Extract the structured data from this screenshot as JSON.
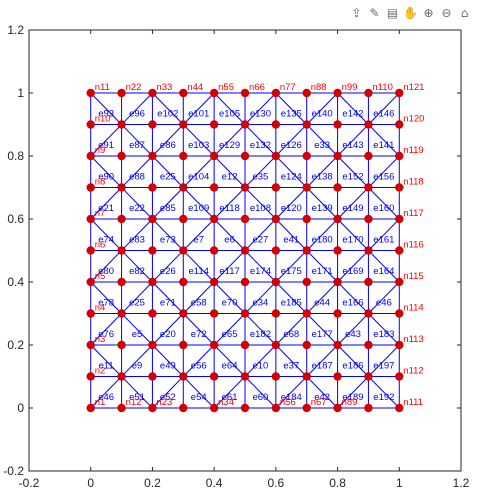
{
  "toolbar": {
    "icons": [
      {
        "name": "export-icon",
        "glyph": "⇪"
      },
      {
        "name": "brush-icon",
        "glyph": "✎"
      },
      {
        "name": "datatip-icon",
        "glyph": "▤"
      },
      {
        "name": "pan-icon",
        "glyph": "✋"
      },
      {
        "name": "zoom-in-icon",
        "glyph": "⊕"
      },
      {
        "name": "zoom-out-icon",
        "glyph": "⊖"
      },
      {
        "name": "home-icon",
        "glyph": "⌂"
      }
    ]
  },
  "chart_data": {
    "type": "scatter",
    "title": "",
    "xlabel": "",
    "ylabel": "",
    "xlim": [
      -0.2,
      1.2
    ],
    "ylim": [
      -0.2,
      1.2
    ],
    "xticks": [
      "-0.2",
      "0",
      "0.2",
      "0.4",
      "0.6",
      "0.8",
      "1",
      "1.2"
    ],
    "yticks": [
      "-0.2",
      "0",
      "0.2",
      "0.4",
      "0.6",
      "0.8",
      "1",
      "1.2"
    ],
    "grid": false,
    "box": true,
    "mesh": {
      "x": [
        0,
        0.1,
        0.2,
        0.3,
        0.4,
        0.5,
        0.6,
        0.7,
        0.8,
        0.9,
        1.0
      ],
      "y": [
        0,
        0.1,
        0.2,
        0.3,
        0.4,
        0.5,
        0.6,
        0.7,
        0.8,
        0.9,
        1.0
      ],
      "diagonals": "each square split by one diagonal",
      "node_color": "#d40000",
      "edge_color": "#0000ff"
    },
    "node_labels": [
      {
        "t": "n1",
        "x": 0,
        "y": 0
      },
      {
        "t": "n12",
        "x": 0.1,
        "y": 0
      },
      {
        "t": "n23",
        "x": 0.2,
        "y": 0
      },
      {
        "t": "n34",
        "x": 0.4,
        "y": 0
      },
      {
        "t": "n56",
        "x": 0.6,
        "y": 0
      },
      {
        "t": "n67",
        "x": 0.7,
        "y": 0
      },
      {
        "t": "n89",
        "x": 0.8,
        "y": 0
      },
      {
        "t": "n111",
        "x": 1.0,
        "y": 0
      },
      {
        "t": "n2",
        "x": 0,
        "y": 0.1
      },
      {
        "t": "n112",
        "x": 1.0,
        "y": 0.1
      },
      {
        "t": "n3",
        "x": 0,
        "y": 0.2
      },
      {
        "t": "n113",
        "x": 1.0,
        "y": 0.2
      },
      {
        "t": "n4",
        "x": 0,
        "y": 0.3
      },
      {
        "t": "n114",
        "x": 1.0,
        "y": 0.3
      },
      {
        "t": "n5",
        "x": 0,
        "y": 0.4
      },
      {
        "t": "n115",
        "x": 1.0,
        "y": 0.4
      },
      {
        "t": "n6",
        "x": 0,
        "y": 0.5
      },
      {
        "t": "n116",
        "x": 1.0,
        "y": 0.5
      },
      {
        "t": "n7",
        "x": 0,
        "y": 0.6
      },
      {
        "t": "n117",
        "x": 1.0,
        "y": 0.6
      },
      {
        "t": "n8",
        "x": 0,
        "y": 0.7
      },
      {
        "t": "n118",
        "x": 1.0,
        "y": 0.7
      },
      {
        "t": "n9",
        "x": 0,
        "y": 0.8
      },
      {
        "t": "n119",
        "x": 1.0,
        "y": 0.8
      },
      {
        "t": "n10",
        "x": 0,
        "y": 0.9
      },
      {
        "t": "n120",
        "x": 1.0,
        "y": 0.9
      },
      {
        "t": "n11",
        "x": 0,
        "y": 1.0
      },
      {
        "t": "n22",
        "x": 0.1,
        "y": 1.0
      },
      {
        "t": "n33",
        "x": 0.2,
        "y": 1.0
      },
      {
        "t": "n44",
        "x": 0.3,
        "y": 1.0
      },
      {
        "t": "n55",
        "x": 0.4,
        "y": 1.0
      },
      {
        "t": "n66",
        "x": 0.5,
        "y": 1.0
      },
      {
        "t": "n77",
        "x": 0.6,
        "y": 1.0
      },
      {
        "t": "n88",
        "x": 0.7,
        "y": 1.0
      },
      {
        "t": "n99",
        "x": 0.8,
        "y": 1.0
      },
      {
        "t": "n110",
        "x": 0.9,
        "y": 1.0
      },
      {
        "t": "n121",
        "x": 1.0,
        "y": 1.0
      }
    ],
    "edge_labels": [
      {
        "t": "e93",
        "x": 0.05,
        "y": 0.935
      },
      {
        "t": "e96",
        "x": 0.15,
        "y": 0.935
      },
      {
        "t": "e102",
        "x": 0.25,
        "y": 0.935
      },
      {
        "t": "e101",
        "x": 0.35,
        "y": 0.935
      },
      {
        "t": "e105",
        "x": 0.45,
        "y": 0.935
      },
      {
        "t": "e130",
        "x": 0.55,
        "y": 0.935
      },
      {
        "t": "e135",
        "x": 0.65,
        "y": 0.935
      },
      {
        "t": "e140",
        "x": 0.75,
        "y": 0.935
      },
      {
        "t": "e142",
        "x": 0.85,
        "y": 0.935
      },
      {
        "t": "e146",
        "x": 0.95,
        "y": 0.935
      },
      {
        "t": "e91",
        "x": 0.05,
        "y": 0.835
      },
      {
        "t": "e87",
        "x": 0.15,
        "y": 0.835
      },
      {
        "t": "e86",
        "x": 0.25,
        "y": 0.835
      },
      {
        "t": "e103",
        "x": 0.35,
        "y": 0.835
      },
      {
        "t": "e129",
        "x": 0.45,
        "y": 0.835
      },
      {
        "t": "e132",
        "x": 0.55,
        "y": 0.835
      },
      {
        "t": "e126",
        "x": 0.65,
        "y": 0.835
      },
      {
        "t": "e33",
        "x": 0.75,
        "y": 0.835
      },
      {
        "t": "e143",
        "x": 0.85,
        "y": 0.835
      },
      {
        "t": "e141",
        "x": 0.95,
        "y": 0.835
      },
      {
        "t": "e90",
        "x": 0.05,
        "y": 0.735
      },
      {
        "t": "e88",
        "x": 0.15,
        "y": 0.735
      },
      {
        "t": "e25",
        "x": 0.25,
        "y": 0.735
      },
      {
        "t": "e104",
        "x": 0.35,
        "y": 0.735
      },
      {
        "t": "e12",
        "x": 0.45,
        "y": 0.735
      },
      {
        "t": "e35",
        "x": 0.55,
        "y": 0.735
      },
      {
        "t": "e124",
        "x": 0.65,
        "y": 0.735
      },
      {
        "t": "e138",
        "x": 0.75,
        "y": 0.735
      },
      {
        "t": "e152",
        "x": 0.85,
        "y": 0.735
      },
      {
        "t": "e156",
        "x": 0.95,
        "y": 0.735
      },
      {
        "t": "e21",
        "x": 0.05,
        "y": 0.635
      },
      {
        "t": "e22",
        "x": 0.15,
        "y": 0.635
      },
      {
        "t": "e85",
        "x": 0.25,
        "y": 0.635
      },
      {
        "t": "e109",
        "x": 0.35,
        "y": 0.635
      },
      {
        "t": "e118",
        "x": 0.45,
        "y": 0.635
      },
      {
        "t": "e108",
        "x": 0.55,
        "y": 0.635
      },
      {
        "t": "e120",
        "x": 0.65,
        "y": 0.635
      },
      {
        "t": "e139",
        "x": 0.75,
        "y": 0.635
      },
      {
        "t": "e149",
        "x": 0.85,
        "y": 0.635
      },
      {
        "t": "e160",
        "x": 0.95,
        "y": 0.635
      },
      {
        "t": "e74",
        "x": 0.05,
        "y": 0.535
      },
      {
        "t": "e83",
        "x": 0.15,
        "y": 0.535
      },
      {
        "t": "e73",
        "x": 0.25,
        "y": 0.535
      },
      {
        "t": "e7",
        "x": 0.35,
        "y": 0.535
      },
      {
        "t": "e6",
        "x": 0.45,
        "y": 0.535
      },
      {
        "t": "e27",
        "x": 0.55,
        "y": 0.535
      },
      {
        "t": "e41",
        "x": 0.65,
        "y": 0.535
      },
      {
        "t": "e180",
        "x": 0.75,
        "y": 0.535
      },
      {
        "t": "e170",
        "x": 0.85,
        "y": 0.535
      },
      {
        "t": "e161",
        "x": 0.95,
        "y": 0.535
      },
      {
        "t": "e80",
        "x": 0.05,
        "y": 0.435
      },
      {
        "t": "e82",
        "x": 0.15,
        "y": 0.435
      },
      {
        "t": "e26",
        "x": 0.25,
        "y": 0.435
      },
      {
        "t": "e114",
        "x": 0.35,
        "y": 0.435
      },
      {
        "t": "e117",
        "x": 0.45,
        "y": 0.435
      },
      {
        "t": "e174",
        "x": 0.55,
        "y": 0.435
      },
      {
        "t": "e175",
        "x": 0.65,
        "y": 0.435
      },
      {
        "t": "e171",
        "x": 0.75,
        "y": 0.435
      },
      {
        "t": "e169",
        "x": 0.85,
        "y": 0.435
      },
      {
        "t": "e164",
        "x": 0.95,
        "y": 0.435
      },
      {
        "t": "e78",
        "x": 0.05,
        "y": 0.335
      },
      {
        "t": "e25",
        "x": 0.15,
        "y": 0.335
      },
      {
        "t": "e71",
        "x": 0.25,
        "y": 0.335
      },
      {
        "t": "e58",
        "x": 0.35,
        "y": 0.335
      },
      {
        "t": "e70",
        "x": 0.45,
        "y": 0.335
      },
      {
        "t": "e34",
        "x": 0.55,
        "y": 0.335
      },
      {
        "t": "e185",
        "x": 0.65,
        "y": 0.335
      },
      {
        "t": "e44",
        "x": 0.75,
        "y": 0.335
      },
      {
        "t": "e166",
        "x": 0.85,
        "y": 0.335
      },
      {
        "t": "e46",
        "x": 0.95,
        "y": 0.335
      },
      {
        "t": "e76",
        "x": 0.05,
        "y": 0.235
      },
      {
        "t": "e5",
        "x": 0.15,
        "y": 0.235
      },
      {
        "t": "e20",
        "x": 0.25,
        "y": 0.235
      },
      {
        "t": "e72",
        "x": 0.35,
        "y": 0.235
      },
      {
        "t": "e65",
        "x": 0.45,
        "y": 0.235
      },
      {
        "t": "e182",
        "x": 0.55,
        "y": 0.235
      },
      {
        "t": "e68",
        "x": 0.65,
        "y": 0.235
      },
      {
        "t": "e177",
        "x": 0.75,
        "y": 0.235
      },
      {
        "t": "e43",
        "x": 0.85,
        "y": 0.235
      },
      {
        "t": "e183",
        "x": 0.95,
        "y": 0.235
      },
      {
        "t": "e11",
        "x": 0.05,
        "y": 0.135
      },
      {
        "t": "e9",
        "x": 0.15,
        "y": 0.135
      },
      {
        "t": "e49",
        "x": 0.25,
        "y": 0.135
      },
      {
        "t": "e56",
        "x": 0.35,
        "y": 0.135
      },
      {
        "t": "e64",
        "x": 0.45,
        "y": 0.135
      },
      {
        "t": "e10",
        "x": 0.55,
        "y": 0.135
      },
      {
        "t": "e37",
        "x": 0.65,
        "y": 0.135
      },
      {
        "t": "e187",
        "x": 0.75,
        "y": 0.135
      },
      {
        "t": "e186",
        "x": 0.85,
        "y": 0.135
      },
      {
        "t": "e197",
        "x": 0.95,
        "y": 0.135
      },
      {
        "t": "e46",
        "x": 0.05,
        "y": 0.035
      },
      {
        "t": "e51",
        "x": 0.15,
        "y": 0.035
      },
      {
        "t": "e52",
        "x": 0.25,
        "y": 0.035
      },
      {
        "t": "e54",
        "x": 0.35,
        "y": 0.035
      },
      {
        "t": "e61",
        "x": 0.45,
        "y": 0.035
      },
      {
        "t": "e60",
        "x": 0.55,
        "y": 0.035
      },
      {
        "t": "e184",
        "x": 0.65,
        "y": 0.035
      },
      {
        "t": "e42",
        "x": 0.75,
        "y": 0.035
      },
      {
        "t": "e189",
        "x": 0.85,
        "y": 0.035
      },
      {
        "t": "e192",
        "x": 0.95,
        "y": 0.035
      }
    ]
  }
}
